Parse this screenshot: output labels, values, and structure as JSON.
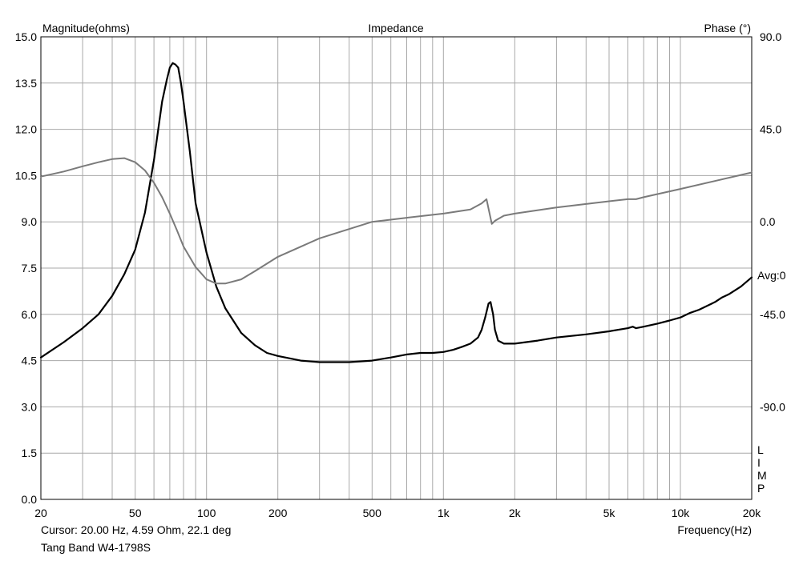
{
  "chart_data": {
    "type": "line",
    "title": "Impedance",
    "left_axis_label": "Magnitude(ohms)",
    "right_axis_label": "Phase (°)",
    "xlabel": "Frequency(Hz)",
    "x_scale": "log",
    "xlim": [
      20,
      20000
    ],
    "ylim": [
      0,
      15
    ],
    "y2lim": [
      -135,
      90
    ],
    "grid": true,
    "x_ticks": [
      20,
      50,
      100,
      200,
      500,
      1000,
      2000,
      5000,
      10000,
      20000
    ],
    "x_tick_labels": [
      "20",
      "50",
      "100",
      "200",
      "500",
      "1k",
      "2k",
      "5k",
      "10k",
      "20k"
    ],
    "y_tick_labels": [
      "0.0",
      "1.5",
      "3.0",
      "4.5",
      "6.0",
      "7.5",
      "9.0",
      "10.5",
      "12.0",
      "13.5",
      "15.0"
    ],
    "y2_tick_labels": [
      "90.0",
      "45.0",
      "0.0",
      "-45.0",
      "-90.0"
    ],
    "avg_label": "Avg:0",
    "side_label": "LIMP",
    "series": [
      {
        "axis": "left",
        "color": "#000000",
        "x": [
          20,
          25,
          30,
          35,
          40,
          45,
          50,
          55,
          60,
          65,
          68,
          70,
          72,
          74,
          76,
          78,
          80,
          85,
          90,
          100,
          110,
          120,
          140,
          160,
          180,
          200,
          250,
          300,
          400,
          500,
          600,
          700,
          800,
          900,
          1000,
          1100,
          1200,
          1300,
          1400,
          1450,
          1500,
          1550,
          1580,
          1620,
          1650,
          1700,
          1800,
          2000,
          2500,
          3000,
          4000,
          5000,
          6000,
          6300,
          6500,
          7000,
          8000,
          9000,
          10000,
          11000,
          12000,
          14000,
          15000,
          16000,
          18000,
          20000
        ],
        "values": [
          4.6,
          5.1,
          5.55,
          6.0,
          6.6,
          7.3,
          8.1,
          9.3,
          11.0,
          12.9,
          13.6,
          14.0,
          14.15,
          14.1,
          14.0,
          13.5,
          12.9,
          11.3,
          9.6,
          8.0,
          6.9,
          6.2,
          5.4,
          5.0,
          4.75,
          4.65,
          4.5,
          4.45,
          4.45,
          4.5,
          4.6,
          4.7,
          4.75,
          4.75,
          4.78,
          4.85,
          4.95,
          5.05,
          5.25,
          5.5,
          5.9,
          6.35,
          6.4,
          6.0,
          5.5,
          5.15,
          5.05,
          5.05,
          5.15,
          5.25,
          5.35,
          5.45,
          5.55,
          5.6,
          5.55,
          5.6,
          5.7,
          5.8,
          5.9,
          6.05,
          6.15,
          6.4,
          6.55,
          6.65,
          6.9,
          7.2
        ]
      },
      {
        "axis": "right",
        "color": "#7a7a7a",
        "x": [
          20,
          25,
          30,
          35,
          40,
          45,
          50,
          55,
          60,
          65,
          70,
          75,
          80,
          90,
          100,
          110,
          120,
          140,
          160,
          200,
          300,
          500,
          700,
          1000,
          1300,
          1450,
          1520,
          1560,
          1600,
          1650,
          1800,
          2000,
          3000,
          5000,
          6000,
          6500,
          7000,
          10000,
          20000
        ],
        "values": [
          22,
          24.5,
          27,
          29,
          30.5,
          31,
          29,
          25,
          19,
          12,
          4,
          -4,
          -12,
          -22,
          -28,
          -30,
          -30,
          -28,
          -24,
          -17,
          -8,
          0,
          2,
          4,
          6,
          9,
          11,
          5,
          -1,
          0.5,
          3,
          4,
          7,
          10,
          11,
          11,
          12,
          16,
          24
        ]
      }
    ]
  },
  "footer": {
    "cursor_text": "Cursor: 20.00 Hz, 4.59 Ohm, 22.1 deg",
    "device_name": "Tang Band W4-1798S"
  }
}
